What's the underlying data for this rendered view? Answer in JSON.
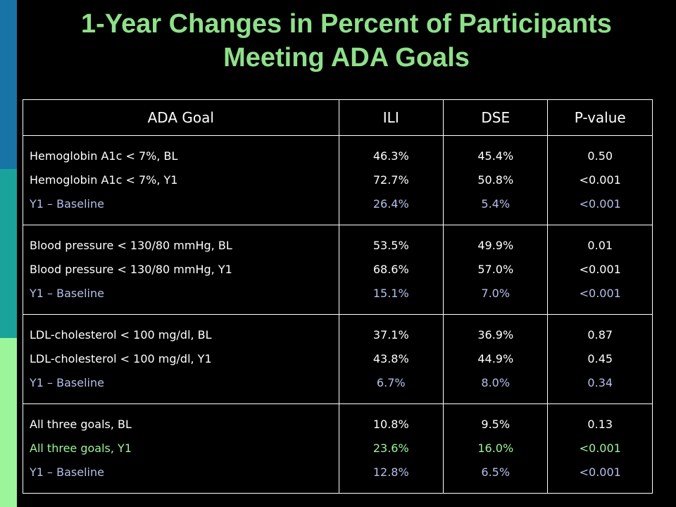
{
  "title": {
    "line1": "1-Year Changes in Percent of Participants",
    "line2": "Meeting ADA Goals"
  },
  "colors": {
    "title": "#8ee08a",
    "baseline_rows": "#b6bfe8",
    "highlight": "#9cf59a",
    "stripe_top": "#1874a6",
    "stripe_mid": "#1aa39b",
    "stripe_bottom": "#9cf59a"
  },
  "table": {
    "headers": [
      "ADA Goal",
      "ILI",
      "DSE",
      "P-value"
    ],
    "groups": [
      {
        "rows": [
          [
            "Hemoglobin A1c < 7%, BL",
            "46.3%",
            "45.4%",
            "0.50"
          ],
          [
            "Hemoglobin A1c < 7%, Y1",
            "72.7%",
            "50.8%",
            "<0.001"
          ],
          [
            "Y1 – Baseline",
            "26.4%",
            "5.4%",
            "<0.001"
          ]
        ]
      },
      {
        "rows": [
          [
            "Blood pressure < 130/80 mmHg, BL",
            "53.5%",
            "49.9%",
            "0.01"
          ],
          [
            "Blood pressure < 130/80 mmHg, Y1",
            "68.6%",
            "57.0%",
            "<0.001"
          ],
          [
            "Y1 – Baseline",
            "15.1%",
            "7.0%",
            "<0.001"
          ]
        ]
      },
      {
        "rows": [
          [
            "LDL-cholesterol < 100 mg/dl, BL",
            "37.1%",
            "36.9%",
            "0.87"
          ],
          [
            "LDL-cholesterol < 100 mg/dl, Y1",
            "43.8%",
            "44.9%",
            "0.45"
          ],
          [
            "Y1 – Baseline",
            "6.7%",
            "8.0%",
            "0.34"
          ]
        ]
      },
      {
        "rows": [
          [
            "All three goals, BL",
            "10.8%",
            "9.5%",
            "0.13"
          ],
          [
            "All three goals, Y1",
            "23.6%",
            "16.0%",
            "<0.001"
          ],
          [
            "Y1 – Baseline",
            "12.8%",
            "6.5%",
            "<0.001"
          ]
        ]
      }
    ]
  }
}
